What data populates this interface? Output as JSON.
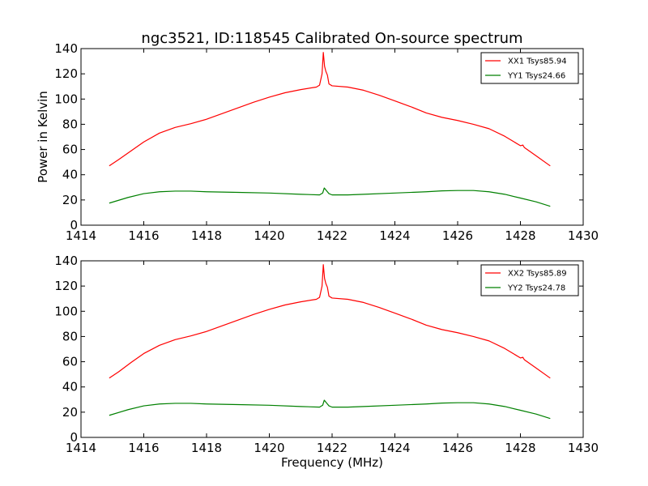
{
  "figure": {
    "title": "ngc3521, ID:118545 Calibrated On-source spectrum",
    "xlabel": "Frequency (MHz)",
    "ylabel": "Power in Kelvin"
  },
  "chart_data": [
    {
      "type": "line",
      "title": "ngc3521, ID:118545 Calibrated On-source spectrum",
      "xlabel": "",
      "ylabel": "Power in Kelvin",
      "xlim": [
        1414,
        1430
      ],
      "ylim": [
        0,
        140
      ],
      "xticks": [
        1414,
        1416,
        1418,
        1420,
        1422,
        1424,
        1426,
        1428,
        1430
      ],
      "yticks": [
        0,
        20,
        40,
        60,
        80,
        100,
        120,
        140
      ],
      "grid": false,
      "legend": "top-right",
      "series": [
        {
          "name": "XX1 Tsys85.94",
          "color": "#ff0000",
          "x": [
            1414.9,
            1415.2,
            1415.6,
            1416.0,
            1416.5,
            1417.0,
            1417.5,
            1418.0,
            1418.5,
            1419.0,
            1419.5,
            1420.0,
            1420.5,
            1421.0,
            1421.5,
            1421.6,
            1421.68,
            1421.72,
            1421.76,
            1421.8,
            1421.85,
            1421.9,
            1422.0,
            1422.5,
            1423.0,
            1423.5,
            1424.0,
            1424.5,
            1425.0,
            1425.5,
            1426.0,
            1426.5,
            1427.0,
            1427.5,
            1428.0,
            1428.08,
            1428.1,
            1428.13,
            1428.5,
            1428.95
          ],
          "y": [
            47,
            52,
            59,
            66,
            73,
            77.5,
            80.5,
            84,
            88.5,
            93,
            97.5,
            101.5,
            105,
            107.5,
            109.5,
            111,
            120,
            137,
            126,
            122,
            119,
            112,
            110.5,
            109.5,
            107,
            103,
            98.5,
            94,
            89,
            85.5,
            83,
            80,
            76.5,
            70.5,
            63,
            63.5,
            62.5,
            61.5,
            55,
            47
          ]
        },
        {
          "name": "YY1 Tsys24.66",
          "color": "#008000",
          "x": [
            1414.9,
            1415.5,
            1416.0,
            1416.5,
            1417.0,
            1417.5,
            1418.0,
            1419.0,
            1420.0,
            1421.0,
            1421.6,
            1421.7,
            1421.75,
            1421.8,
            1421.85,
            1421.9,
            1422.0,
            1422.5,
            1423.0,
            1424.0,
            1425.0,
            1425.5,
            1426.0,
            1426.5,
            1427.0,
            1427.5,
            1428.0,
            1428.5,
            1428.95
          ],
          "y": [
            17.5,
            22,
            25,
            26.5,
            27,
            27,
            26.5,
            26,
            25.5,
            24.5,
            24,
            25.5,
            29.5,
            28,
            26.5,
            25,
            24,
            24,
            24.5,
            25.5,
            26.5,
            27.2,
            27.5,
            27.5,
            26.5,
            24.5,
            21.5,
            18.5,
            15
          ]
        }
      ]
    },
    {
      "type": "line",
      "title": "",
      "xlabel": "Frequency (MHz)",
      "ylabel": "",
      "xlim": [
        1414,
        1430
      ],
      "ylim": [
        0,
        140
      ],
      "xticks": [
        1414,
        1416,
        1418,
        1420,
        1422,
        1424,
        1426,
        1428,
        1430
      ],
      "yticks": [
        0,
        20,
        40,
        60,
        80,
        100,
        120,
        140
      ],
      "grid": false,
      "legend": "top-right",
      "series": [
        {
          "name": "XX2 Tsys85.89",
          "color": "#ff0000",
          "x": [
            1414.9,
            1415.2,
            1415.6,
            1416.0,
            1416.5,
            1417.0,
            1417.5,
            1418.0,
            1418.5,
            1419.0,
            1419.5,
            1420.0,
            1420.5,
            1421.0,
            1421.5,
            1421.6,
            1421.68,
            1421.72,
            1421.76,
            1421.8,
            1421.85,
            1421.9,
            1422.0,
            1422.5,
            1423.0,
            1423.5,
            1424.0,
            1424.5,
            1425.0,
            1425.5,
            1426.0,
            1426.5,
            1427.0,
            1427.5,
            1428.0,
            1428.08,
            1428.1,
            1428.13,
            1428.5,
            1428.95
          ],
          "y": [
            47,
            52,
            59.5,
            66.5,
            73,
            77.5,
            80.5,
            84,
            88.5,
            93,
            97.5,
            101.5,
            105,
            107.5,
            109.5,
            111,
            120,
            137,
            126,
            122,
            119,
            112,
            110.5,
            109.5,
            107,
            103,
            98.5,
            94,
            89,
            85.5,
            83,
            80,
            76.5,
            70.5,
            63,
            63.5,
            62.5,
            61.5,
            55,
            47
          ]
        },
        {
          "name": "YY2 Tsys24.78",
          "color": "#008000",
          "x": [
            1414.9,
            1415.5,
            1416.0,
            1416.5,
            1417.0,
            1417.5,
            1418.0,
            1419.0,
            1420.0,
            1421.0,
            1421.6,
            1421.7,
            1421.75,
            1421.8,
            1421.85,
            1421.9,
            1422.0,
            1422.5,
            1423.0,
            1424.0,
            1425.0,
            1425.5,
            1426.0,
            1426.5,
            1427.0,
            1427.5,
            1428.0,
            1428.5,
            1428.95
          ],
          "y": [
            17.5,
            22,
            25,
            26.5,
            27,
            27,
            26.5,
            26,
            25.5,
            24.5,
            24,
            25.5,
            29.5,
            28,
            26.5,
            25,
            24,
            24,
            24.5,
            25.5,
            26.5,
            27.2,
            27.5,
            27.5,
            26.5,
            24.5,
            21.5,
            18.5,
            15
          ]
        }
      ]
    }
  ]
}
